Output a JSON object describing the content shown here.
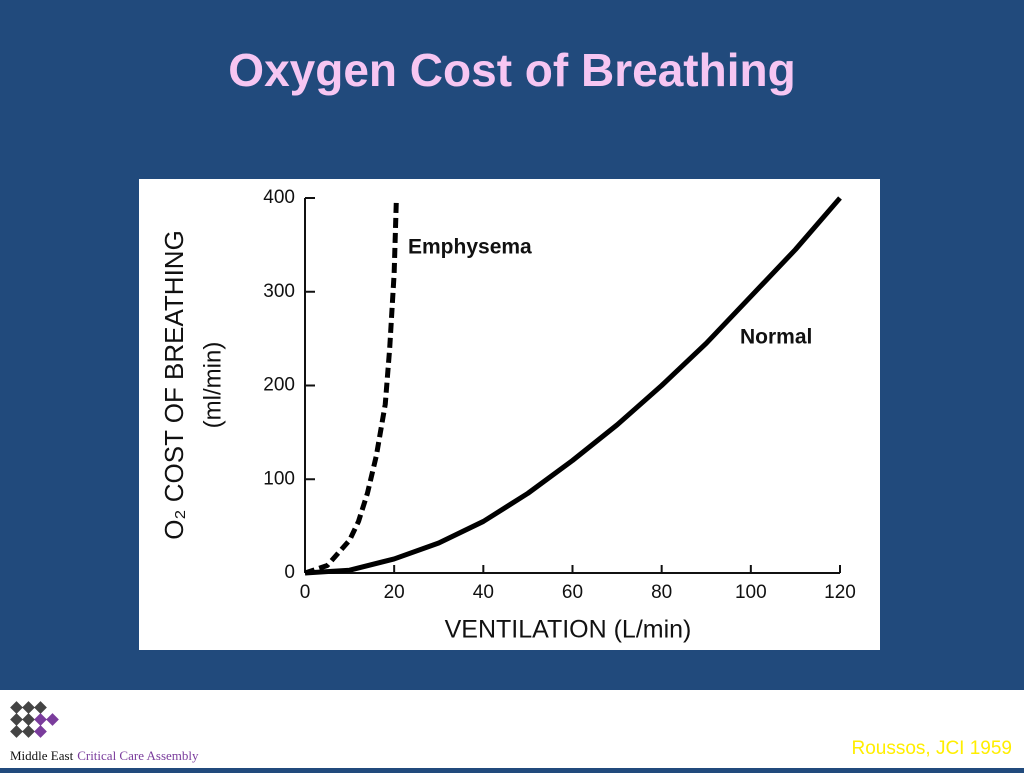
{
  "chart_data": {
    "type": "line",
    "title": "Oxygen Cost of Breathing",
    "xlabel": "VENTILATION (L/min)",
    "ylabel": "O₂ COST OF BREATHING",
    "ylabel_unit": "(ml/min)",
    "xlim": [
      0,
      120
    ],
    "xticks": [
      0,
      20,
      40,
      60,
      80,
      100,
      120
    ],
    "ylim": [
      0,
      400
    ],
    "yticks": [
      0,
      100,
      200,
      300,
      400
    ],
    "series": [
      {
        "name": "Emphysema",
        "color": "#000000",
        "dashed": true,
        "x": [
          0,
          5,
          10,
          12,
          14,
          16,
          18,
          19,
          20,
          20.5
        ],
        "values": [
          0,
          8,
          35,
          55,
          85,
          125,
          180,
          240,
          320,
          400
        ]
      },
      {
        "name": "Normal",
        "color": "#000000",
        "dashed": false,
        "x": [
          0,
          10,
          20,
          30,
          40,
          50,
          60,
          70,
          80,
          90,
          100,
          110,
          120
        ],
        "values": [
          0,
          3,
          15,
          32,
          55,
          85,
          120,
          158,
          200,
          245,
          295,
          345,
          400
        ]
      }
    ]
  },
  "footer": {
    "org_prefix": "Middle East",
    "org_name": "Critical Care Assembly",
    "citation": "Roussos, JCI 1959"
  }
}
